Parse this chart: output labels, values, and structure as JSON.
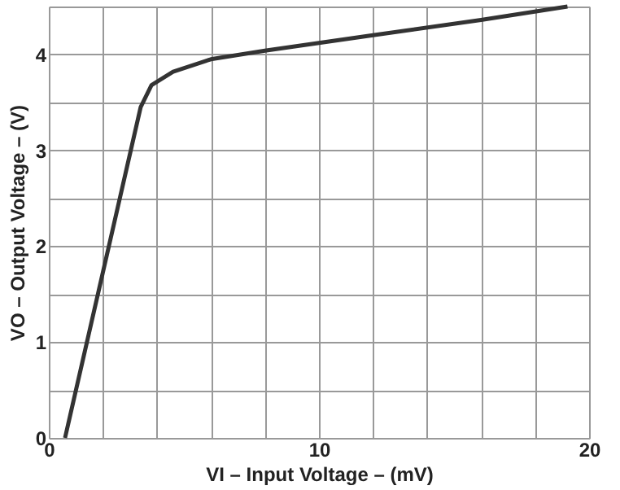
{
  "chart_data": {
    "type": "line",
    "xlabel": "VI – Input Voltage – (mV)",
    "ylabel": "VO – Output Voltage – (V)",
    "x": [
      0.6,
      3.4,
      3.8,
      4.6,
      6,
      8,
      12,
      16,
      19.2
    ],
    "series": [
      {
        "color": "#333333",
        "values": [
          0,
          3.45,
          3.68,
          3.82,
          3.95,
          4.04,
          4.2,
          4.36,
          4.5
        ]
      }
    ],
    "xlim": [
      0,
      20
    ],
    "ylim": [
      0,
      4.5
    ],
    "xticks": [
      0,
      {
        "value": 2,
        "label": null
      },
      {
        "value": 4,
        "label": null
      },
      {
        "value": 6,
        "label": null
      },
      {
        "value": 8,
        "label": null
      },
      10,
      {
        "value": 12,
        "label": null
      },
      {
        "value": 14,
        "label": null
      },
      {
        "value": 16,
        "label": null
      },
      {
        "value": 18,
        "label": null
      },
      20
    ],
    "yticks": [
      0,
      {
        "value": 0.5,
        "label": null
      },
      1,
      {
        "value": 1.5,
        "label": null
      },
      2,
      {
        "value": 2.5,
        "label": null
      },
      3,
      {
        "value": 3.5,
        "label": null
      },
      4,
      {
        "value": 4.5,
        "label": null
      }
    ],
    "grid": true,
    "marker": "none",
    "line_style": "solid"
  }
}
